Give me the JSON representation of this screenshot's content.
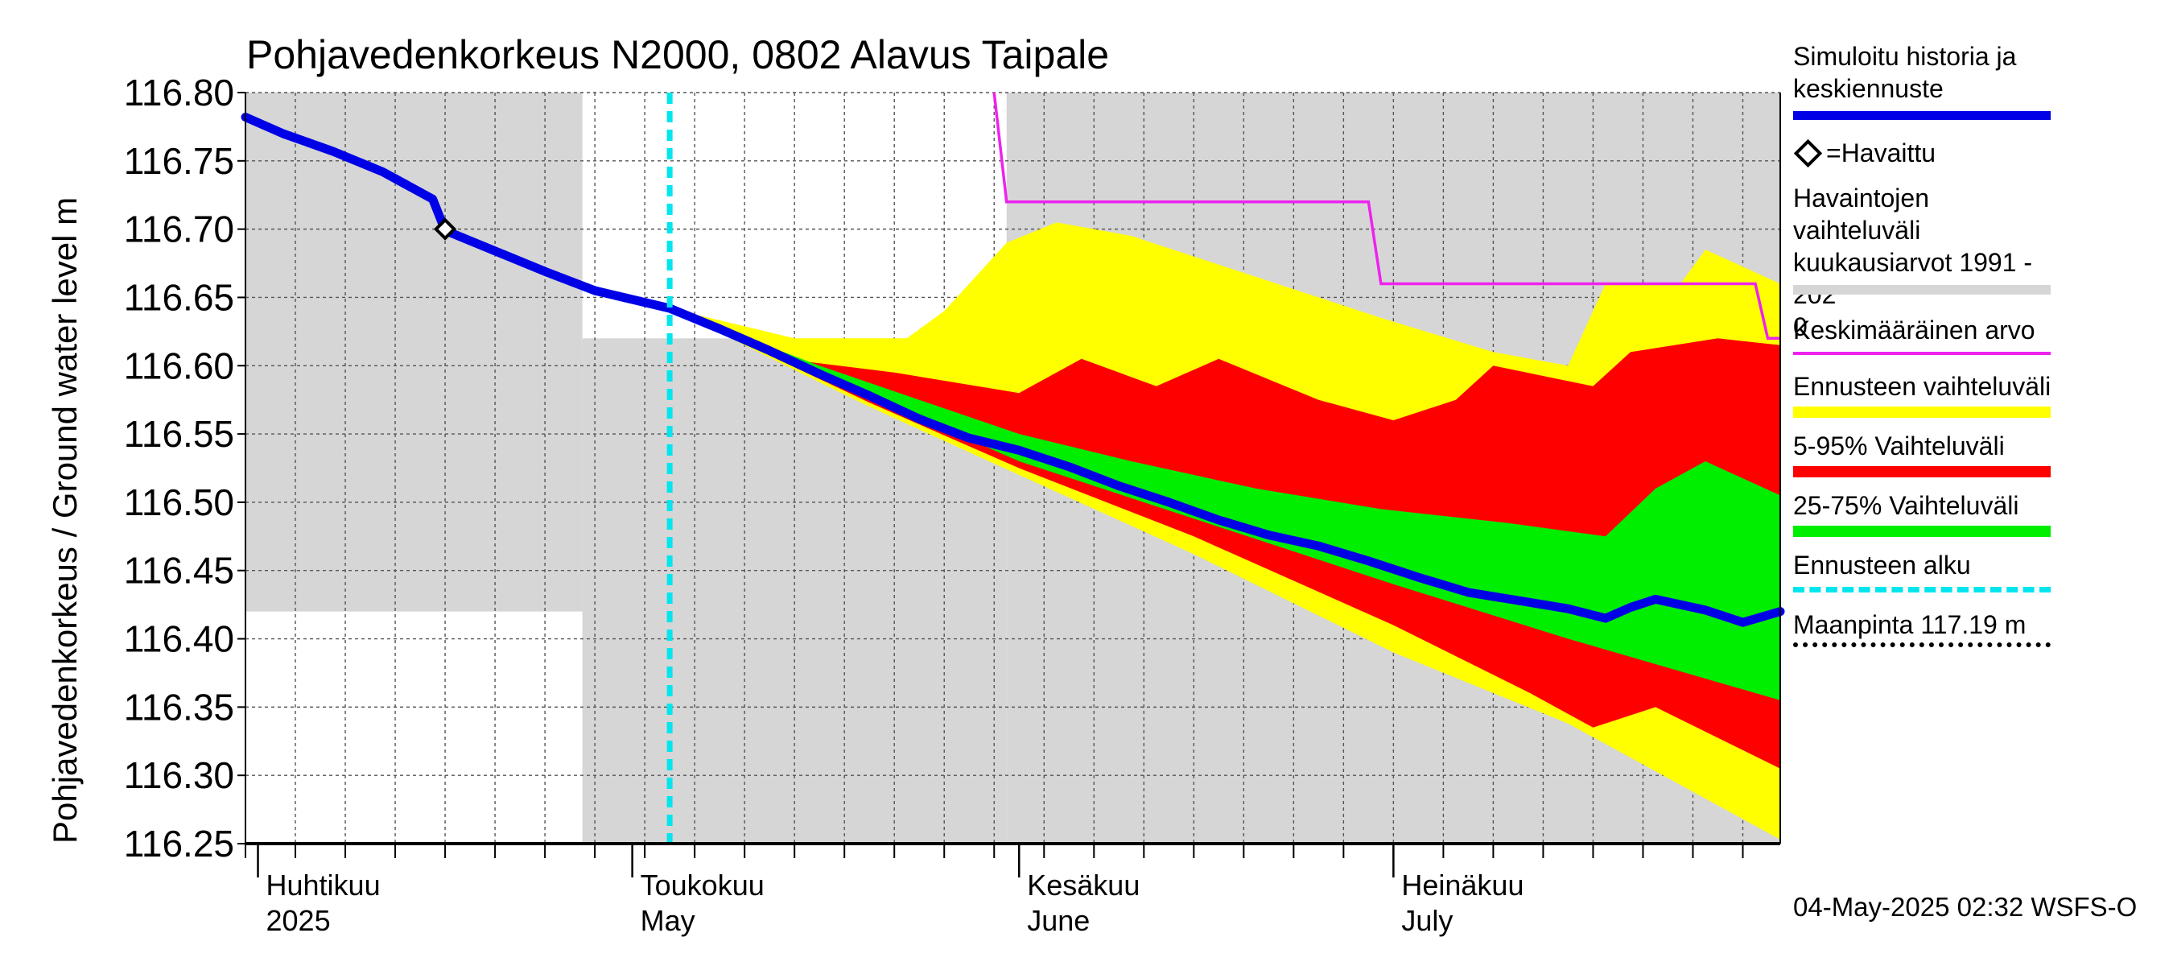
{
  "title": "Pohjavedenkorkeus N2000, 0802 Alavus Taipale",
  "ylabel": "Pohjavedenkorkeus / Ground water level   m",
  "colors": {
    "history": "#0000e6",
    "observed": "#000000",
    "range_obs": "#d6d6d6",
    "mean": "#ee22ee",
    "forecast_range": "#ffff00",
    "p5_95": "#ff0000",
    "p25_75": "#00ee00",
    "forecast_start": "#00e5ee",
    "ground": "#000000"
  },
  "legend": {
    "history": "Simuloitu historia ja\nkeskiennuste",
    "observed": "=Havaittu",
    "range_obs": "Havaintojen vaihteluväli\n kuukausiarvot 1991 - 202\n0",
    "mean": "Keskimääräinen arvo",
    "forecast_range": "Ennusteen vaihteluväli",
    "p5_95": "5-95% Vaihteluväli",
    "p25_75": "25-75% Vaihteluväli",
    "forecast_start": "Ennusteen alku",
    "ground": "Maanpinta 117.19 m"
  },
  "footer": "04-May-2025 02:32 WSFS-O",
  "chart_data": {
    "type": "area",
    "title": "Pohjavedenkorkeus N2000, 0802 Alavus Taipale",
    "ylabel": "Pohjavedenkorkeus / Ground water level m",
    "xlim": [
      "2025-03-31",
      "2025-08-01"
    ],
    "ylim": [
      116.25,
      116.8
    ],
    "y_ticks": [
      "116.25",
      "116.30",
      "116.35",
      "116.40",
      "116.45",
      "116.50",
      "116.55",
      "116.60",
      "116.65",
      "116.70",
      "116.75",
      "116.80"
    ],
    "month_labels": [
      {
        "date": "2025-04-01",
        "fi": "Huhtikuu",
        "en": "2025"
      },
      {
        "date": "2025-05-01",
        "fi": "Toukokuu",
        "en": "May"
      },
      {
        "date": "2025-06-01",
        "fi": "Kesäkuu",
        "en": "June"
      },
      {
        "date": "2025-07-01",
        "fi": "Heinäkuu",
        "en": "July"
      }
    ],
    "grid": true,
    "forecast_start": "2025-05-04",
    "ground_level": 117.19,
    "observed": [
      {
        "x": "2025-04-16",
        "y": 116.7
      }
    ],
    "monthly_observed_range": [
      {
        "from": "2025-03-31",
        "to": "2025-04-27",
        "min": 116.42,
        "max": 116.8
      },
      {
        "from": "2025-04-27",
        "to": "2025-05-31",
        "min": 116.25,
        "max": 116.62
      },
      {
        "from": "2025-05-31",
        "to": "2025-08-01",
        "min": 116.25,
        "max": 116.8
      }
    ],
    "mean": [
      {
        "x": "2025-05-30",
        "y": 116.8
      },
      {
        "x": "2025-05-31",
        "y": 116.72
      },
      {
        "x": "2025-06-29",
        "y": 116.72
      },
      {
        "x": "2025-06-30",
        "y": 116.66
      },
      {
        "x": "2025-07-30",
        "y": 116.66
      },
      {
        "x": "2025-07-31",
        "y": 116.62
      },
      {
        "x": "2025-08-01",
        "y": 116.62
      }
    ],
    "series": [
      {
        "name": "Simuloitu historia ja keskiennuste",
        "points": [
          {
            "x": "2025-03-31",
            "y": 116.782
          },
          {
            "x": "2025-04-03",
            "y": 116.77
          },
          {
            "x": "2025-04-07",
            "y": 116.757
          },
          {
            "x": "2025-04-11",
            "y": 116.742
          },
          {
            "x": "2025-04-15",
            "y": 116.722
          },
          {
            "x": "2025-04-16",
            "y": 116.699
          },
          {
            "x": "2025-04-20",
            "y": 116.684
          },
          {
            "x": "2025-04-24",
            "y": 116.669
          },
          {
            "x": "2025-04-28",
            "y": 116.655
          },
          {
            "x": "2025-05-04",
            "y": 116.642
          },
          {
            "x": "2025-05-08",
            "y": 116.627
          },
          {
            "x": "2025-05-12",
            "y": 116.611
          },
          {
            "x": "2025-05-16",
            "y": 116.594
          },
          {
            "x": "2025-05-20",
            "y": 116.578
          },
          {
            "x": "2025-05-24",
            "y": 116.561
          },
          {
            "x": "2025-05-28",
            "y": 116.547
          },
          {
            "x": "2025-06-01",
            "y": 116.538
          },
          {
            "x": "2025-06-05",
            "y": 116.526
          },
          {
            "x": "2025-06-09",
            "y": 116.512
          },
          {
            "x": "2025-06-13",
            "y": 116.5
          },
          {
            "x": "2025-06-17",
            "y": 116.487
          },
          {
            "x": "2025-06-21",
            "y": 116.476
          },
          {
            "x": "2025-06-25",
            "y": 116.468
          },
          {
            "x": "2025-06-29",
            "y": 116.457
          },
          {
            "x": "2025-07-03",
            "y": 116.445
          },
          {
            "x": "2025-07-07",
            "y": 116.434
          },
          {
            "x": "2025-07-11",
            "y": 116.428
          },
          {
            "x": "2025-07-15",
            "y": 116.422
          },
          {
            "x": "2025-07-18",
            "y": 116.415
          },
          {
            "x": "2025-07-20",
            "y": 116.423
          },
          {
            "x": "2025-07-22",
            "y": 116.429
          },
          {
            "x": "2025-07-26",
            "y": 116.421
          },
          {
            "x": "2025-07-29",
            "y": 116.412
          },
          {
            "x": "2025-08-01",
            "y": 116.42
          }
        ]
      },
      {
        "name": "Ennusteen vaihteluväli",
        "upper": [
          {
            "x": "2025-05-04",
            "y": 116.642
          },
          {
            "x": "2025-05-14",
            "y": 116.62
          },
          {
            "x": "2025-05-23",
            "y": 116.62
          },
          {
            "x": "2025-05-26",
            "y": 116.64
          },
          {
            "x": "2025-05-31",
            "y": 116.69
          },
          {
            "x": "2025-06-04",
            "y": 116.705
          },
          {
            "x": "2025-06-10",
            "y": 116.695
          },
          {
            "x": "2025-06-20",
            "y": 116.665
          },
          {
            "x": "2025-06-30",
            "y": 116.635
          },
          {
            "x": "2025-07-09",
            "y": 116.61
          },
          {
            "x": "2025-07-15",
            "y": 116.6
          },
          {
            "x": "2025-07-18",
            "y": 116.66
          },
          {
            "x": "2025-07-24",
            "y": 116.66
          },
          {
            "x": "2025-07-26",
            "y": 116.685
          },
          {
            "x": "2025-08-01",
            "y": 116.66
          }
        ],
        "lower": [
          {
            "x": "2025-05-04",
            "y": 116.642
          },
          {
            "x": "2025-05-20",
            "y": 116.57
          },
          {
            "x": "2025-06-01",
            "y": 116.52
          },
          {
            "x": "2025-06-15",
            "y": 116.462
          },
          {
            "x": "2025-07-01",
            "y": 116.39
          },
          {
            "x": "2025-07-15",
            "y": 116.338
          },
          {
            "x": "2025-08-01",
            "y": 116.253
          }
        ]
      },
      {
        "name": "5-95% Vaihteluväli",
        "upper": [
          {
            "x": "2025-05-04",
            "y": 116.642
          },
          {
            "x": "2025-05-14",
            "y": 116.604
          },
          {
            "x": "2025-05-22",
            "y": 116.595
          },
          {
            "x": "2025-06-01",
            "y": 116.58
          },
          {
            "x": "2025-06-06",
            "y": 116.605
          },
          {
            "x": "2025-06-12",
            "y": 116.585
          },
          {
            "x": "2025-06-17",
            "y": 116.605
          },
          {
            "x": "2025-06-25",
            "y": 116.575
          },
          {
            "x": "2025-07-01",
            "y": 116.56
          },
          {
            "x": "2025-07-06",
            "y": 116.575
          },
          {
            "x": "2025-07-09",
            "y": 116.6
          },
          {
            "x": "2025-07-17",
            "y": 116.585
          },
          {
            "x": "2025-07-20",
            "y": 116.61
          },
          {
            "x": "2025-07-27",
            "y": 116.62
          },
          {
            "x": "2025-08-01",
            "y": 116.615
          }
        ],
        "lower": [
          {
            "x": "2025-05-04",
            "y": 116.642
          },
          {
            "x": "2025-05-20",
            "y": 116.573
          },
          {
            "x": "2025-06-01",
            "y": 116.525
          },
          {
            "x": "2025-06-15",
            "y": 116.475
          },
          {
            "x": "2025-07-01",
            "y": 116.41
          },
          {
            "x": "2025-07-12",
            "y": 116.36
          },
          {
            "x": "2025-07-17",
            "y": 116.335
          },
          {
            "x": "2025-07-22",
            "y": 116.35
          },
          {
            "x": "2025-08-01",
            "y": 116.305
          }
        ]
      },
      {
        "name": "25-75% Vaihteluväli",
        "upper": [
          {
            "x": "2025-05-04",
            "y": 116.642
          },
          {
            "x": "2025-05-16",
            "y": 116.6
          },
          {
            "x": "2025-05-24",
            "y": 116.575
          },
          {
            "x": "2025-06-01",
            "y": 116.55
          },
          {
            "x": "2025-06-10",
            "y": 116.53
          },
          {
            "x": "2025-06-20",
            "y": 116.51
          },
          {
            "x": "2025-06-30",
            "y": 116.495
          },
          {
            "x": "2025-07-10",
            "y": 116.485
          },
          {
            "x": "2025-07-18",
            "y": 116.475
          },
          {
            "x": "2025-07-22",
            "y": 116.51
          },
          {
            "x": "2025-07-26",
            "y": 116.53
          },
          {
            "x": "2025-08-01",
            "y": 116.505
          }
        ],
        "lower": [
          {
            "x": "2025-05-04",
            "y": 116.642
          },
          {
            "x": "2025-05-20",
            "y": 116.578
          },
          {
            "x": "2025-06-01",
            "y": 116.53
          },
          {
            "x": "2025-06-15",
            "y": 116.488
          },
          {
            "x": "2025-07-01",
            "y": 116.44
          },
          {
            "x": "2025-07-15",
            "y": 116.4
          },
          {
            "x": "2025-08-01",
            "y": 116.355
          }
        ]
      }
    ]
  }
}
